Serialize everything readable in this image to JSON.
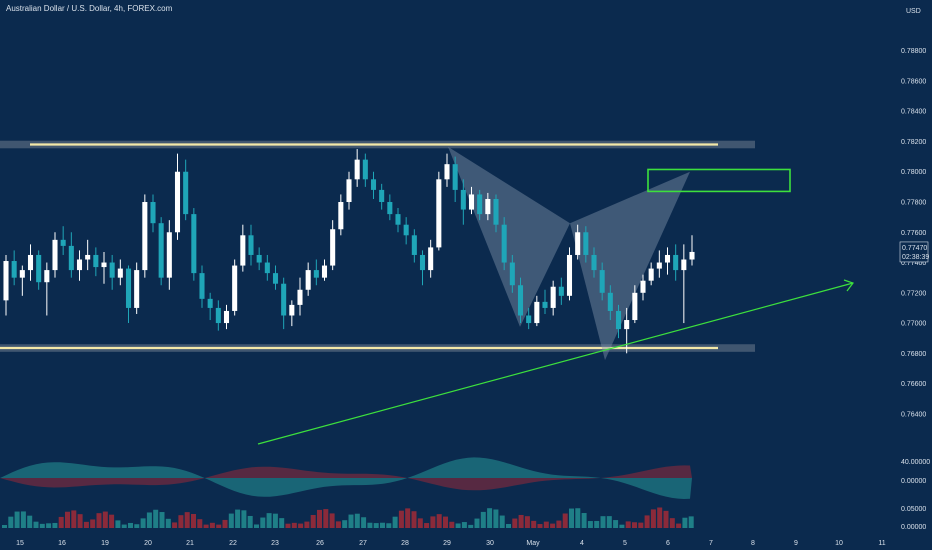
{
  "header": {
    "title": "Australian Dollar / U.S. Dollar, 4h, FOREX.com"
  },
  "colors": {
    "background": "#0b2a4e",
    "up": "#ffffff",
    "down": "#1fa6b8",
    "level_line": "#f3e8a8",
    "level_band": "#5e6e82",
    "pattern_fill": "#7f93ab",
    "green_line": "#3de03d",
    "osc_teal": "#1f7f87",
    "osc_red": "#8b2a3a",
    "axis_text": "#d8e0ea"
  },
  "chart_data": {
    "type": "candlestick",
    "currency": "USD",
    "last_price": "0.77470",
    "countdown": "02:38:39",
    "y_ticks": [
      "0.78800",
      "0.78600",
      "0.78400",
      "0.78200",
      "0.78000",
      "0.77800",
      "0.77600",
      "0.77400",
      "0.77200",
      "0.77000",
      "0.76800",
      "0.76600",
      "0.76400"
    ],
    "ylim": [
      0.7628,
      0.7895
    ],
    "x_ticks": [
      "15",
      "16",
      "19",
      "20",
      "21",
      "22",
      "23",
      "26",
      "27",
      "28",
      "29",
      "30",
      "May",
      "4",
      "5",
      "6",
      "7",
      "8",
      "9",
      "10",
      "11"
    ],
    "candles": [
      [
        0.7715,
        0.7745,
        0.7705,
        0.7741
      ],
      [
        0.7741,
        0.7748,
        0.7725,
        0.773
      ],
      [
        0.773,
        0.7738,
        0.7718,
        0.7735
      ],
      [
        0.7735,
        0.7752,
        0.7728,
        0.7745
      ],
      [
        0.7745,
        0.7748,
        0.7722,
        0.7727
      ],
      [
        0.7727,
        0.774,
        0.7705,
        0.7735
      ],
      [
        0.7735,
        0.776,
        0.773,
        0.7755
      ],
      [
        0.7755,
        0.7764,
        0.7745,
        0.7751
      ],
      [
        0.7751,
        0.776,
        0.773,
        0.7735
      ],
      [
        0.7735,
        0.7748,
        0.7728,
        0.7742
      ],
      [
        0.7742,
        0.7755,
        0.7735,
        0.7745
      ],
      [
        0.7745,
        0.775,
        0.7731,
        0.7737
      ],
      [
        0.7737,
        0.7747,
        0.7726,
        0.774
      ],
      [
        0.774,
        0.7745,
        0.7722,
        0.773
      ],
      [
        0.773,
        0.7742,
        0.7725,
        0.7736
      ],
      [
        0.7736,
        0.7738,
        0.77,
        0.771
      ],
      [
        0.771,
        0.774,
        0.7706,
        0.7735
      ],
      [
        0.7735,
        0.7785,
        0.773,
        0.778
      ],
      [
        0.778,
        0.7785,
        0.776,
        0.7766
      ],
      [
        0.7766,
        0.777,
        0.7725,
        0.773
      ],
      [
        0.773,
        0.7768,
        0.7722,
        0.776
      ],
      [
        0.776,
        0.7812,
        0.7755,
        0.78
      ],
      [
        0.78,
        0.7808,
        0.7768,
        0.7772
      ],
      [
        0.7772,
        0.7776,
        0.7728,
        0.7733
      ],
      [
        0.7733,
        0.7738,
        0.771,
        0.7716
      ],
      [
        0.7716,
        0.772,
        0.7702,
        0.771
      ],
      [
        0.771,
        0.7715,
        0.7695,
        0.77
      ],
      [
        0.77,
        0.7712,
        0.7696,
        0.7708
      ],
      [
        0.7708,
        0.7742,
        0.7705,
        0.7738
      ],
      [
        0.7738,
        0.7765,
        0.7734,
        0.7758
      ],
      [
        0.7758,
        0.7765,
        0.7738,
        0.7745
      ],
      [
        0.7745,
        0.775,
        0.7735,
        0.774
      ],
      [
        0.774,
        0.7745,
        0.7728,
        0.7733
      ],
      [
        0.7733,
        0.7738,
        0.7722,
        0.7726
      ],
      [
        0.7726,
        0.773,
        0.7696,
        0.7705
      ],
      [
        0.7705,
        0.7715,
        0.7698,
        0.7712
      ],
      [
        0.7712,
        0.773,
        0.7705,
        0.7722
      ],
      [
        0.7722,
        0.774,
        0.7718,
        0.7735
      ],
      [
        0.7735,
        0.7742,
        0.7725,
        0.773
      ],
      [
        0.773,
        0.7742,
        0.7728,
        0.7738
      ],
      [
        0.7738,
        0.7768,
        0.7735,
        0.7762
      ],
      [
        0.7762,
        0.7785,
        0.7758,
        0.778
      ],
      [
        0.778,
        0.78,
        0.7775,
        0.7795
      ],
      [
        0.7795,
        0.7815,
        0.779,
        0.7808
      ],
      [
        0.7808,
        0.7812,
        0.779,
        0.7795
      ],
      [
        0.7795,
        0.78,
        0.7782,
        0.7788
      ],
      [
        0.7788,
        0.7792,
        0.7775,
        0.778
      ],
      [
        0.778,
        0.7785,
        0.7768,
        0.7772
      ],
      [
        0.7772,
        0.7776,
        0.776,
        0.7765
      ],
      [
        0.7765,
        0.777,
        0.7752,
        0.7758
      ],
      [
        0.7758,
        0.7762,
        0.774,
        0.7745
      ],
      [
        0.7745,
        0.7748,
        0.7725,
        0.7735
      ],
      [
        0.7735,
        0.7755,
        0.773,
        0.775
      ],
      [
        0.775,
        0.78,
        0.7748,
        0.7795
      ],
      [
        0.7795,
        0.7812,
        0.779,
        0.7805
      ],
      [
        0.7805,
        0.781,
        0.778,
        0.7788
      ],
      [
        0.7788,
        0.7795,
        0.7765,
        0.7775
      ],
      [
        0.7775,
        0.779,
        0.7772,
        0.7785
      ],
      [
        0.7785,
        0.7788,
        0.7768,
        0.7772
      ],
      [
        0.7772,
        0.7786,
        0.7768,
        0.7782
      ],
      [
        0.7782,
        0.7785,
        0.776,
        0.7765
      ],
      [
        0.7765,
        0.777,
        0.7735,
        0.774
      ],
      [
        0.774,
        0.7745,
        0.772,
        0.7725
      ],
      [
        0.7725,
        0.773,
        0.77,
        0.7705
      ],
      [
        0.7705,
        0.771,
        0.7696,
        0.77
      ],
      [
        0.77,
        0.7718,
        0.7698,
        0.7714
      ],
      [
        0.7714,
        0.7722,
        0.7706,
        0.771
      ],
      [
        0.771,
        0.7728,
        0.7705,
        0.7724
      ],
      [
        0.7724,
        0.773,
        0.7712,
        0.7718
      ],
      [
        0.7718,
        0.775,
        0.7715,
        0.7745
      ],
      [
        0.7745,
        0.7765,
        0.7742,
        0.776
      ],
      [
        0.776,
        0.7764,
        0.774,
        0.7745
      ],
      [
        0.7745,
        0.775,
        0.773,
        0.7735
      ],
      [
        0.7735,
        0.774,
        0.7715,
        0.772
      ],
      [
        0.772,
        0.7725,
        0.7702,
        0.7708
      ],
      [
        0.7708,
        0.7712,
        0.769,
        0.7696
      ],
      [
        0.7696,
        0.771,
        0.768,
        0.7702
      ],
      [
        0.7702,
        0.7725,
        0.77,
        0.772
      ],
      [
        0.772,
        0.7732,
        0.7715,
        0.7728
      ],
      [
        0.7728,
        0.774,
        0.7725,
        0.7736
      ],
      [
        0.7736,
        0.7748,
        0.773,
        0.774
      ],
      [
        0.774,
        0.775,
        0.7732,
        0.7745
      ],
      [
        0.7745,
        0.7752,
        0.7728,
        0.7735
      ],
      [
        0.7735,
        0.7752,
        0.77,
        0.7742
      ],
      [
        0.7742,
        0.7758,
        0.7738,
        0.7747
      ]
    ],
    "oscillator": {
      "label": "40.00000",
      "zero": "0.00000"
    },
    "volume": {
      "labels": [
        "0.05000",
        "0.00000"
      ]
    }
  }
}
